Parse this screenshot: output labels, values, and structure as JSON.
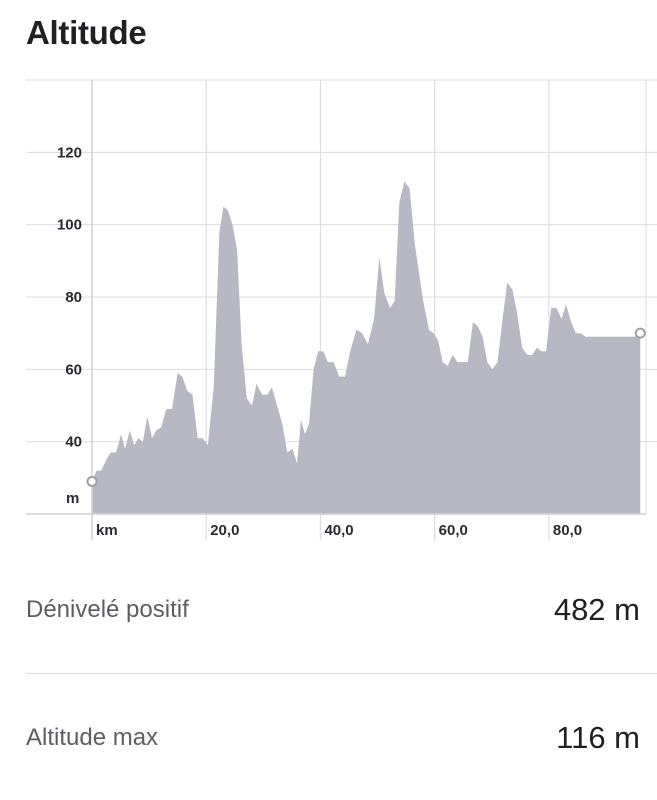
{
  "header": {
    "title": "Altitude"
  },
  "chart_data": {
    "type": "area",
    "title": "",
    "xlabel": "km",
    "ylabel": "m",
    "xlim": [
      0,
      97
    ],
    "ylim": [
      20,
      140
    ],
    "x_ticks": [
      20,
      40,
      60,
      80
    ],
    "x_tick_labels": [
      "20,0",
      "40,0",
      "60,0",
      "80,0"
    ],
    "y_ticks": [
      40,
      60,
      80,
      100,
      120
    ],
    "y_tick_labels": [
      "40",
      "60",
      "80",
      "100",
      "120"
    ],
    "grid": true,
    "fill_color": "#b8b8c4",
    "grid_color": "#dcdce2",
    "x": [
      0,
      0.8,
      1.6,
      2.5,
      3.3,
      4.2,
      5.1,
      5.8,
      6.6,
      7.4,
      8.1,
      8.9,
      9.7,
      10.5,
      11.2,
      12.1,
      13.0,
      14.0,
      15.0,
      15.8,
      16.7,
      17.6,
      18.5,
      19.4,
      20.3,
      21.3,
      22.3,
      23.0,
      23.8,
      24.6,
      25.4,
      26.2,
      27.1,
      28.0,
      28.8,
      29.8,
      30.7,
      31.5,
      32.4,
      33.3,
      34.2,
      35.1,
      35.9,
      36.6,
      37.3,
      38.0,
      38.8,
      39.6,
      40.5,
      41.3,
      42.3,
      43.3,
      44.3,
      45.2,
      46.3,
      47.3,
      48.3,
      49.4,
      50.3,
      51.2,
      52.2,
      53.0,
      53.8,
      54.7,
      55.6,
      56.5,
      57.3,
      58.1,
      59.0,
      59.8,
      60.6,
      61.4,
      62.3,
      63.1,
      64.0,
      64.9,
      65.8,
      66.7,
      67.5,
      68.4,
      69.2,
      70.1,
      71.0,
      71.9,
      72.7,
      73.6,
      74.4,
      75.3,
      76.2,
      77.1,
      77.9,
      78.7,
      79.5,
      80.4,
      81.3,
      82.2,
      83.0,
      83.9,
      84.7,
      85.6,
      86.4,
      87.3,
      88.1,
      89.0,
      89.9,
      90.8,
      91.6,
      92.5,
      93.3,
      94.2,
      95.0,
      96.0
    ],
    "series": [
      {
        "values": [
          29,
          32,
          32,
          35,
          37,
          37,
          42,
          38,
          43,
          39,
          41,
          40,
          47,
          41,
          43,
          44,
          49,
          49,
          59,
          58,
          54,
          53,
          41,
          41,
          39,
          55,
          98,
          105,
          104,
          100,
          93,
          67,
          52,
          50,
          56,
          53,
          53,
          55,
          50,
          45,
          37,
          38,
          34,
          46,
          42,
          45,
          60,
          65,
          65,
          62,
          62,
          58,
          58,
          65,
          71,
          70,
          67,
          74,
          91,
          81,
          77,
          79,
          106,
          112,
          110,
          95,
          86,
          78,
          71,
          70,
          68,
          62,
          61,
          64,
          62,
          62,
          62,
          73,
          72,
          69,
          62,
          60,
          62,
          74,
          84,
          82,
          76,
          66,
          64,
          64,
          66,
          65,
          65,
          77,
          77,
          74,
          78,
          73,
          70,
          70,
          69,
          69,
          69,
          69,
          69,
          69,
          69,
          69,
          69,
          69,
          69,
          70
        ]
      }
    ]
  },
  "stats": [
    {
      "label": "Dénivelé positif",
      "value": "482 m"
    },
    {
      "label": "Altitude max",
      "value": "116 m"
    }
  ]
}
